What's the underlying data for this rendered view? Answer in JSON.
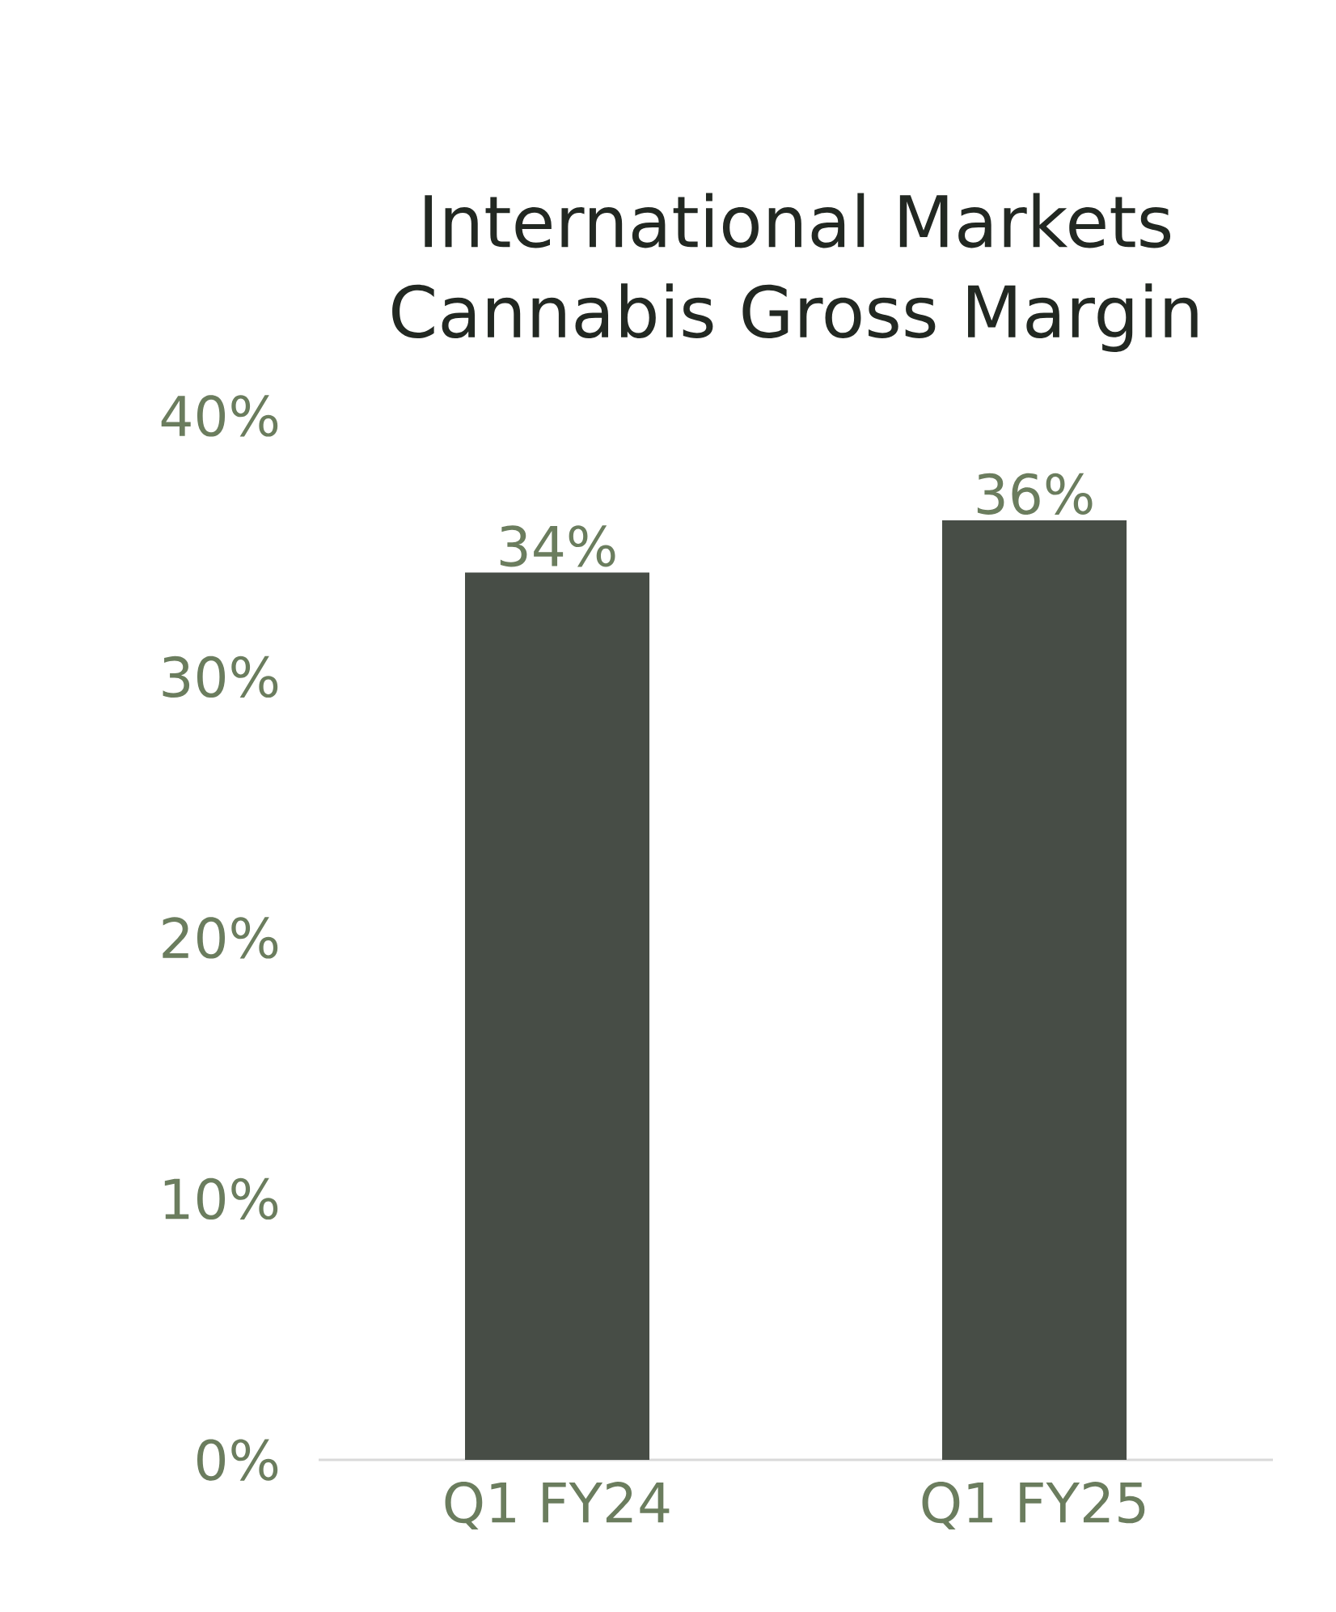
{
  "chart_data": {
    "type": "bar",
    "title": "International Markets Cannabis Gross Margin",
    "categories": [
      "Q1 FY24",
      "Q1 FY25"
    ],
    "values": [
      34,
      36
    ],
    "color": "#474d46",
    "value_labels": [
      "34%",
      "36%"
    ],
    "ylim": [
      0,
      40
    ],
    "yticks": [
      {
        "value": 0,
        "label": "0%"
      },
      {
        "value": 10,
        "label": "10%"
      },
      {
        "value": 20,
        "label": "20%"
      },
      {
        "value": 30,
        "label": "30%"
      },
      {
        "value": 40,
        "label": "40%"
      }
    ]
  }
}
